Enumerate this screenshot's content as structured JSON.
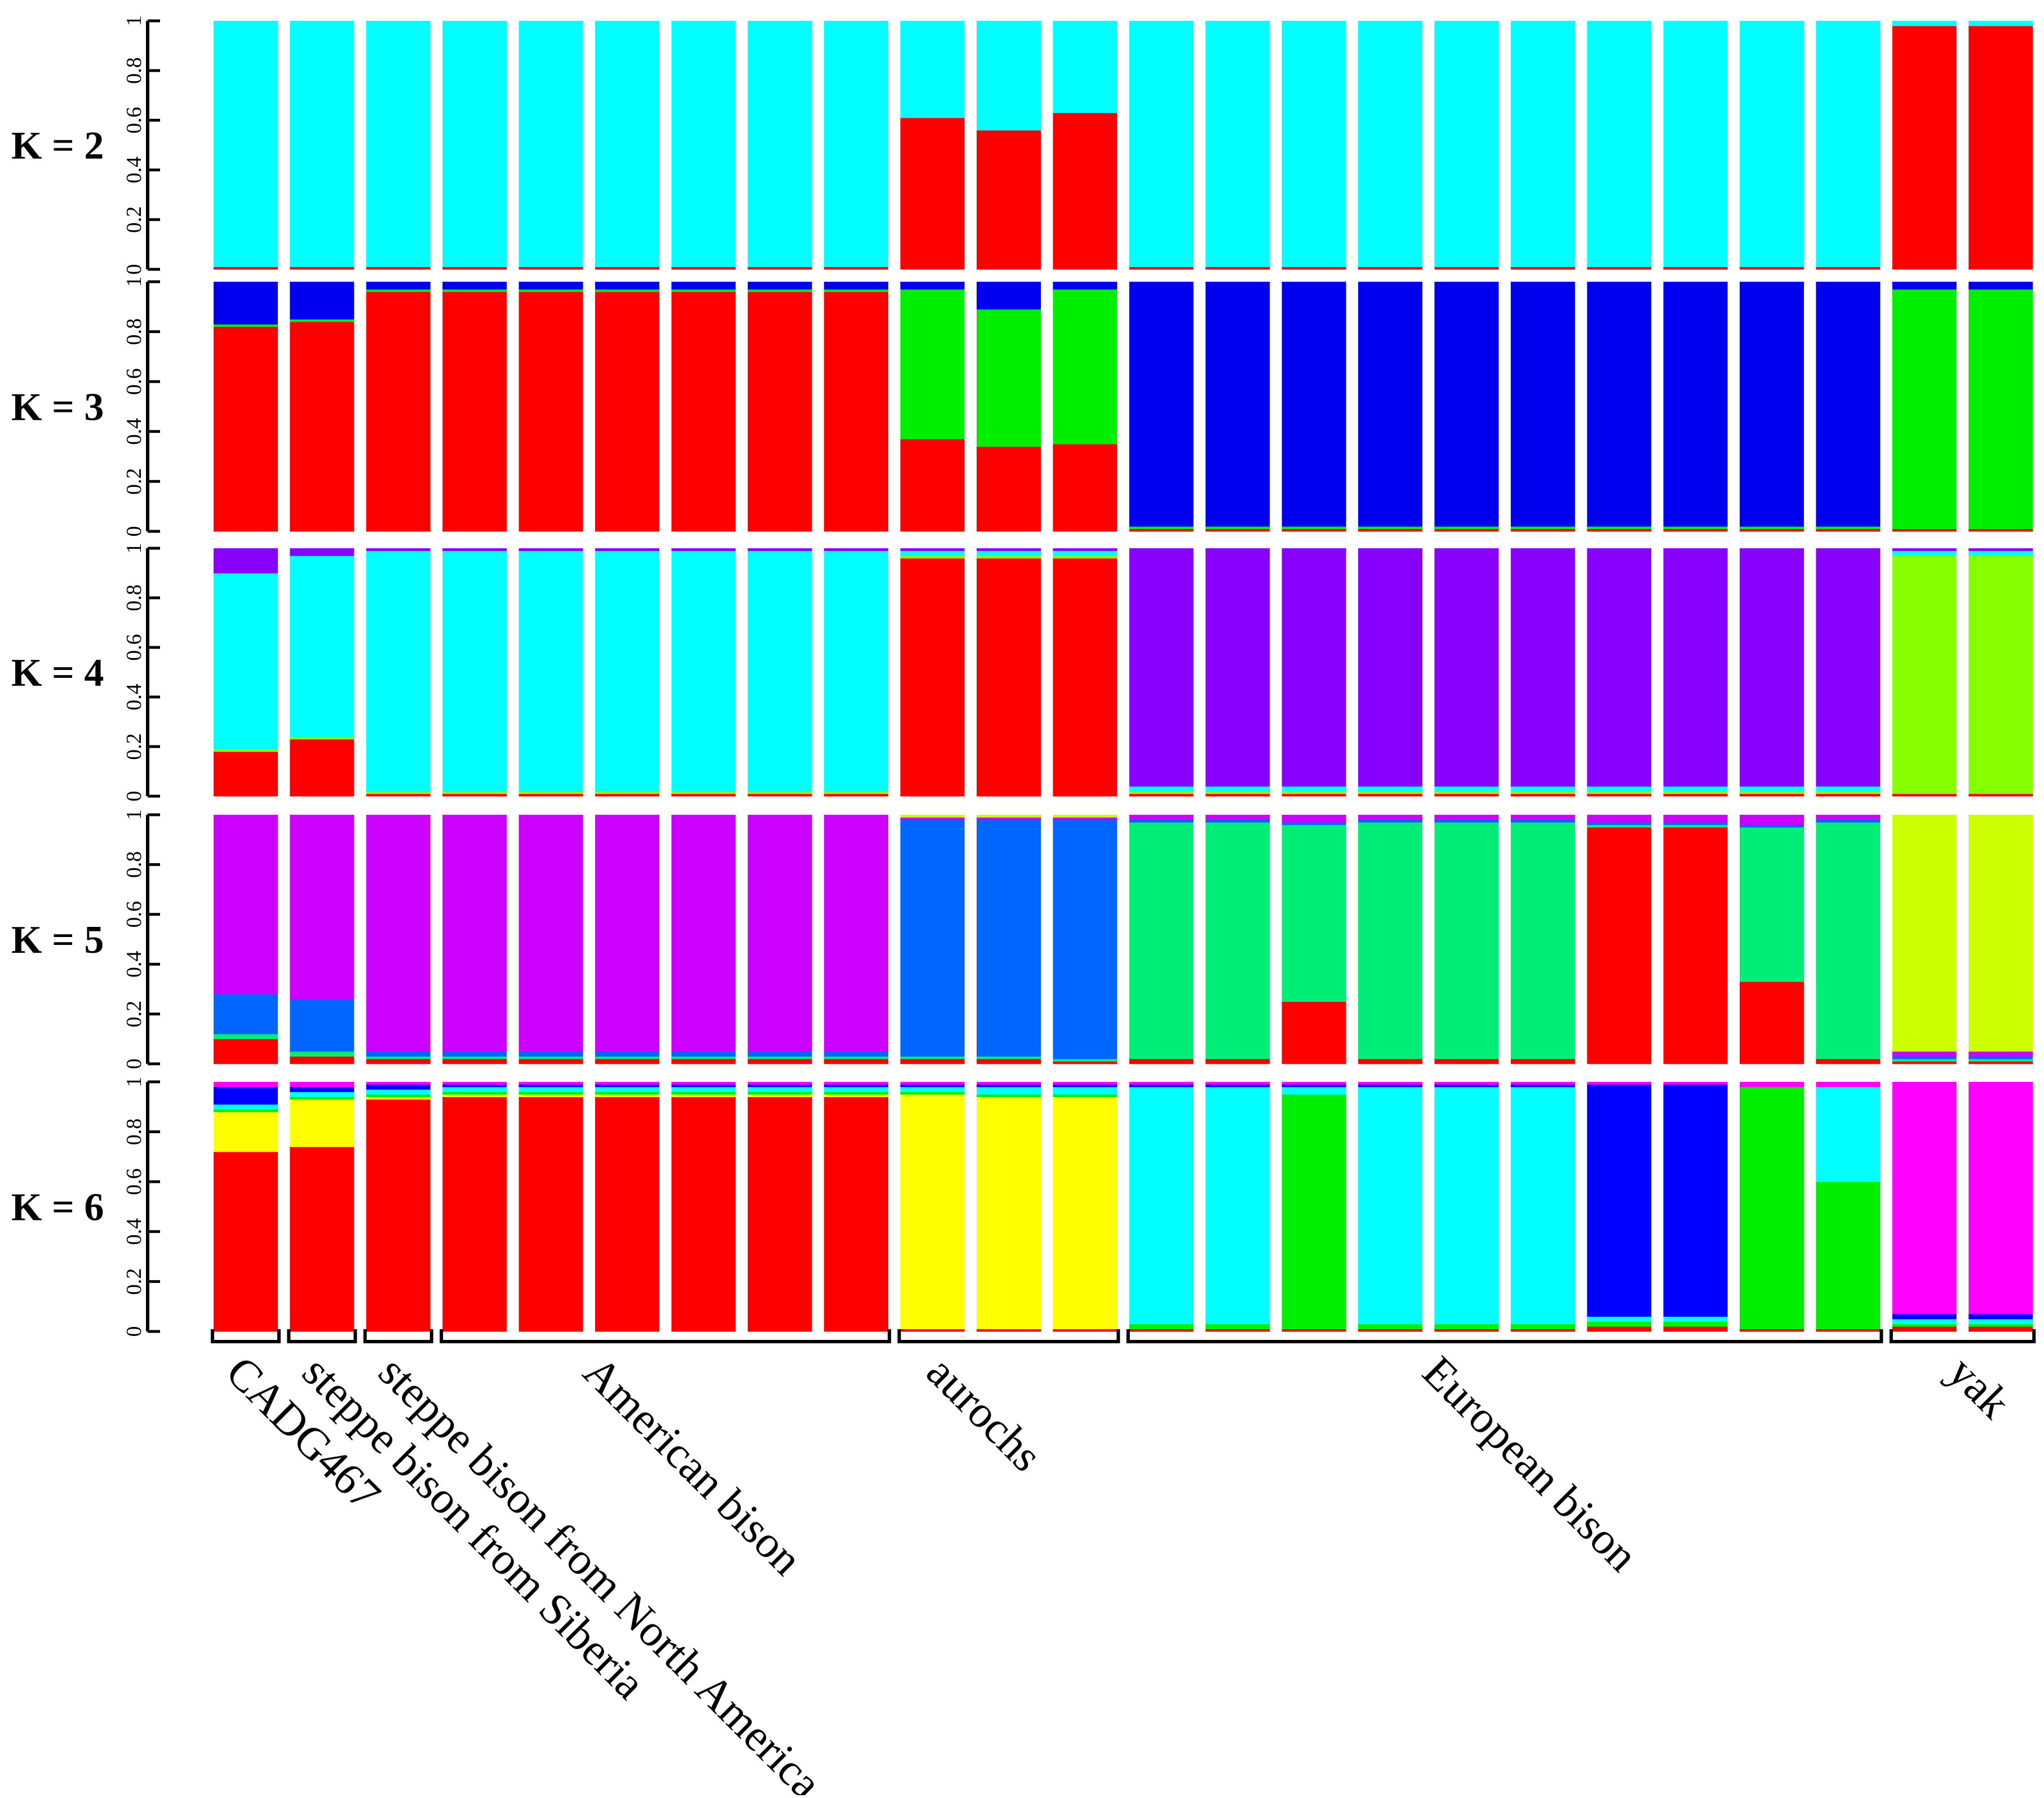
{
  "chart_data": {
    "type": "stacked-bar",
    "title": "",
    "description_of_axes": "Each panel: ancestry proportion (0-1) per individual sample; individuals grouped by population",
    "y_ticks": [
      {
        "value": 0,
        "label": "0"
      },
      {
        "value": 0.2,
        "label": "0.2"
      },
      {
        "value": 0.4,
        "label": "0.4"
      },
      {
        "value": 0.6,
        "label": "0.6"
      },
      {
        "value": 0.8,
        "label": "0.8"
      },
      {
        "value": 1,
        "label": "1"
      }
    ],
    "ylim": [
      0,
      1
    ],
    "groups": [
      {
        "name": "CADG467",
        "start": 0,
        "end": 0
      },
      {
        "name": "steppe bison from Siberia",
        "start": 1,
        "end": 1
      },
      {
        "name": "steppe bison from North America",
        "start": 2,
        "end": 2
      },
      {
        "name": "American bison",
        "start": 3,
        "end": 8
      },
      {
        "name": "aurochs",
        "start": 9,
        "end": 11
      },
      {
        "name": "European bison",
        "start": 12,
        "end": 21
      },
      {
        "name": "yak",
        "start": 22,
        "end": 23
      }
    ],
    "panels": [
      {
        "label": "K = 2",
        "components": [
          "red",
          "cyan"
        ],
        "colors": {
          "red": "#ff0000",
          "cyan": "#00ffff"
        },
        "samples": [
          [
            0.01,
            0.99
          ],
          [
            0.01,
            0.99
          ],
          [
            0.01,
            0.99
          ],
          [
            0.01,
            0.99
          ],
          [
            0.01,
            0.99
          ],
          [
            0.01,
            0.99
          ],
          [
            0.01,
            0.99
          ],
          [
            0.01,
            0.99
          ],
          [
            0.01,
            0.99
          ],
          [
            0.61,
            0.39
          ],
          [
            0.56,
            0.44
          ],
          [
            0.63,
            0.37
          ],
          [
            0.01,
            0.99
          ],
          [
            0.01,
            0.99
          ],
          [
            0.01,
            0.99
          ],
          [
            0.01,
            0.99
          ],
          [
            0.01,
            0.99
          ],
          [
            0.01,
            0.99
          ],
          [
            0.01,
            0.99
          ],
          [
            0.01,
            0.99
          ],
          [
            0.01,
            0.99
          ],
          [
            0.01,
            0.99
          ],
          [
            0.98,
            0.02
          ],
          [
            0.98,
            0.02
          ]
        ]
      },
      {
        "label": "K = 3",
        "components": [
          "red",
          "green",
          "blue"
        ],
        "colors": {
          "red": "#ff0000",
          "green": "#00ee00",
          "blue": "#0000ee"
        },
        "samples": [
          [
            0.82,
            0.01,
            0.17
          ],
          [
            0.84,
            0.01,
            0.15
          ],
          [
            0.96,
            0.01,
            0.03
          ],
          [
            0.96,
            0.01,
            0.03
          ],
          [
            0.96,
            0.01,
            0.03
          ],
          [
            0.96,
            0.01,
            0.03
          ],
          [
            0.96,
            0.01,
            0.03
          ],
          [
            0.96,
            0.01,
            0.03
          ],
          [
            0.96,
            0.01,
            0.03
          ],
          [
            0.37,
            0.6,
            0.03
          ],
          [
            0.34,
            0.55,
            0.11
          ],
          [
            0.35,
            0.62,
            0.03
          ],
          [
            0.01,
            0.01,
            0.98
          ],
          [
            0.01,
            0.01,
            0.98
          ],
          [
            0.01,
            0.01,
            0.98
          ],
          [
            0.01,
            0.01,
            0.98
          ],
          [
            0.01,
            0.01,
            0.98
          ],
          [
            0.01,
            0.01,
            0.98
          ],
          [
            0.01,
            0.01,
            0.98
          ],
          [
            0.01,
            0.01,
            0.98
          ],
          [
            0.01,
            0.01,
            0.98
          ],
          [
            0.01,
            0.01,
            0.98
          ],
          [
            0.01,
            0.96,
            0.03
          ],
          [
            0.01,
            0.96,
            0.03
          ]
        ]
      },
      {
        "label": "K = 4",
        "components": [
          "red",
          "green",
          "cyan",
          "purple"
        ],
        "colors": {
          "red": "#ff0000",
          "green": "#88ff00",
          "cyan": "#00ffff",
          "purple": "#8800ff"
        },
        "samples": [
          [
            0.18,
            0.01,
            0.71,
            0.1
          ],
          [
            0.23,
            0.01,
            0.73,
            0.03
          ],
          [
            0.01,
            0.01,
            0.97,
            0.01
          ],
          [
            0.01,
            0.01,
            0.97,
            0.01
          ],
          [
            0.01,
            0.01,
            0.97,
            0.01
          ],
          [
            0.01,
            0.01,
            0.97,
            0.01
          ],
          [
            0.01,
            0.01,
            0.97,
            0.01
          ],
          [
            0.01,
            0.01,
            0.97,
            0.01
          ],
          [
            0.01,
            0.01,
            0.97,
            0.01
          ],
          [
            0.96,
            0.01,
            0.02,
            0.01
          ],
          [
            0.96,
            0.01,
            0.02,
            0.01
          ],
          [
            0.96,
            0.01,
            0.02,
            0.01
          ],
          [
            0.01,
            0.01,
            0.02,
            0.96
          ],
          [
            0.01,
            0.01,
            0.02,
            0.96
          ],
          [
            0.01,
            0.01,
            0.02,
            0.96
          ],
          [
            0.01,
            0.01,
            0.02,
            0.96
          ],
          [
            0.01,
            0.01,
            0.02,
            0.96
          ],
          [
            0.01,
            0.01,
            0.02,
            0.96
          ],
          [
            0.01,
            0.01,
            0.02,
            0.96
          ],
          [
            0.01,
            0.01,
            0.02,
            0.96
          ],
          [
            0.01,
            0.01,
            0.02,
            0.96
          ],
          [
            0.01,
            0.01,
            0.02,
            0.96
          ],
          [
            0.01,
            0.96,
            0.02,
            0.01
          ],
          [
            0.01,
            0.96,
            0.02,
            0.01
          ]
        ]
      },
      {
        "label": "K = 5",
        "components": [
          "red",
          "green",
          "blue",
          "purple",
          "lime"
        ],
        "colors": {
          "red": "#ff0000",
          "green": "#00ee77",
          "blue": "#0066ff",
          "purple": "#cc00ff",
          "lime": "#ccff00"
        },
        "samples": [
          [
            0.1,
            0.02,
            0.16,
            0.72,
            0.0
          ],
          [
            0.03,
            0.02,
            0.21,
            0.74,
            0.0
          ],
          [
            0.02,
            0.01,
            0.02,
            0.95,
            0.0
          ],
          [
            0.02,
            0.01,
            0.02,
            0.95,
            0.0
          ],
          [
            0.02,
            0.01,
            0.02,
            0.95,
            0.0
          ],
          [
            0.02,
            0.01,
            0.02,
            0.95,
            0.0
          ],
          [
            0.02,
            0.01,
            0.02,
            0.95,
            0.0
          ],
          [
            0.02,
            0.01,
            0.02,
            0.95,
            0.0
          ],
          [
            0.02,
            0.01,
            0.02,
            0.95,
            0.0
          ],
          [
            0.02,
            0.01,
            0.95,
            0.01,
            0.01
          ],
          [
            0.02,
            0.01,
            0.95,
            0.01,
            0.01
          ],
          [
            0.01,
            0.01,
            0.96,
            0.01,
            0.01
          ],
          [
            0.02,
            0.95,
            0.01,
            0.02,
            0.0
          ],
          [
            0.02,
            0.95,
            0.01,
            0.02,
            0.0
          ],
          [
            0.25,
            0.71,
            0.01,
            0.03,
            0.0
          ],
          [
            0.02,
            0.95,
            0.01,
            0.02,
            0.0
          ],
          [
            0.02,
            0.95,
            0.01,
            0.02,
            0.0
          ],
          [
            0.02,
            0.95,
            0.01,
            0.02,
            0.0
          ],
          [
            0.95,
            0.01,
            0.01,
            0.03,
            0.0
          ],
          [
            0.95,
            0.01,
            0.01,
            0.03,
            0.0
          ],
          [
            0.33,
            0.62,
            0.01,
            0.04,
            0.0
          ],
          [
            0.02,
            0.95,
            0.01,
            0.02,
            0.0
          ],
          [
            0.01,
            0.01,
            0.01,
            0.02,
            0.95
          ],
          [
            0.01,
            0.01,
            0.01,
            0.02,
            0.95
          ]
        ]
      },
      {
        "label": "K = 6",
        "components": [
          "red",
          "yellow",
          "green",
          "cyan",
          "blue",
          "magenta"
        ],
        "colors": {
          "red": "#ff0000",
          "yellow": "#ffff00",
          "green": "#00ee00",
          "cyan": "#00ffff",
          "blue": "#0000ff",
          "magenta": "#ff00ff"
        },
        "samples": [
          [
            0.72,
            0.16,
            0.01,
            0.02,
            0.07,
            0.02
          ],
          [
            0.74,
            0.19,
            0.01,
            0.02,
            0.02,
            0.02
          ],
          [
            0.93,
            0.01,
            0.01,
            0.02,
            0.02,
            0.01
          ],
          [
            0.94,
            0.01,
            0.01,
            0.02,
            0.01,
            0.01
          ],
          [
            0.94,
            0.01,
            0.01,
            0.02,
            0.01,
            0.01
          ],
          [
            0.94,
            0.01,
            0.01,
            0.02,
            0.01,
            0.01
          ],
          [
            0.94,
            0.01,
            0.01,
            0.02,
            0.01,
            0.01
          ],
          [
            0.94,
            0.01,
            0.01,
            0.02,
            0.01,
            0.01
          ],
          [
            0.94,
            0.01,
            0.01,
            0.02,
            0.01,
            0.01
          ],
          [
            0.01,
            0.94,
            0.01,
            0.02,
            0.01,
            0.01
          ],
          [
            0.01,
            0.93,
            0.01,
            0.03,
            0.01,
            0.01
          ],
          [
            0.01,
            0.93,
            0.01,
            0.03,
            0.01,
            0.01
          ],
          [
            0.01,
            0.0,
            0.02,
            0.95,
            0.01,
            0.01
          ],
          [
            0.01,
            0.0,
            0.02,
            0.95,
            0.01,
            0.01
          ],
          [
            0.01,
            0.0,
            0.94,
            0.03,
            0.01,
            0.01
          ],
          [
            0.01,
            0.0,
            0.02,
            0.95,
            0.01,
            0.01
          ],
          [
            0.01,
            0.0,
            0.02,
            0.95,
            0.01,
            0.01
          ],
          [
            0.01,
            0.0,
            0.02,
            0.95,
            0.01,
            0.01
          ],
          [
            0.02,
            0.0,
            0.02,
            0.02,
            0.93,
            0.01
          ],
          [
            0.02,
            0.0,
            0.02,
            0.02,
            0.93,
            0.01
          ],
          [
            0.01,
            0.0,
            0.97,
            0.0,
            0.0,
            0.02
          ],
          [
            0.01,
            0.0,
            0.59,
            0.38,
            0.0,
            0.02
          ],
          [
            0.02,
            0.0,
            0.01,
            0.02,
            0.02,
            0.93
          ],
          [
            0.02,
            0.0,
            0.01,
            0.02,
            0.02,
            0.93
          ]
        ]
      }
    ]
  }
}
